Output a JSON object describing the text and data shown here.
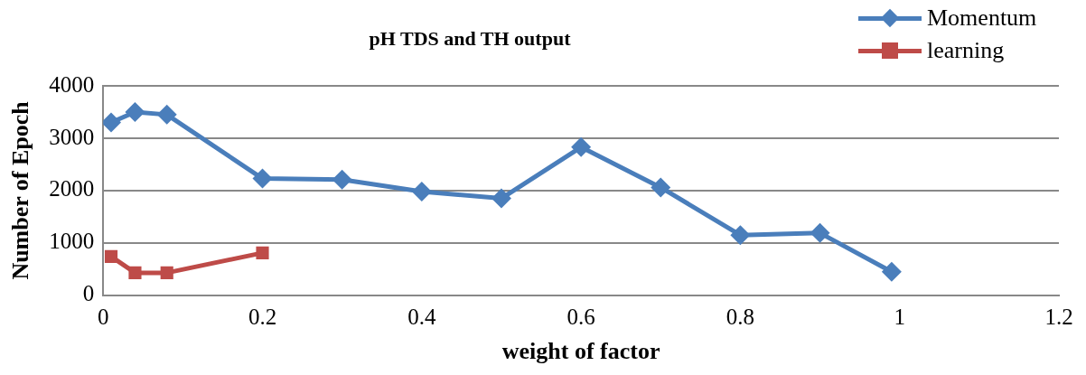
{
  "chart_data": {
    "type": "line",
    "title": "pH TDS and TH output",
    "xlabel": "weight of factor",
    "ylabel": "Number of Epoch",
    "xlim": [
      0,
      1.2
    ],
    "xticks": [
      0,
      0.2,
      0.4,
      0.6,
      0.8,
      1,
      1.2
    ],
    "ylim": [
      0,
      4000
    ],
    "yticks": [
      0,
      1000,
      2000,
      3000,
      4000
    ],
    "grid": "y",
    "legend": "top right",
    "line_style": "solid",
    "series": [
      {
        "name": "Momentum",
        "color": "#4a7ebb",
        "marker": "diamond",
        "x": [
          0.01,
          0.04,
          0.08,
          0.2,
          0.3,
          0.4,
          0.5,
          0.6,
          0.7,
          0.8,
          0.9,
          0.99
        ],
        "values": [
          3300,
          3500,
          3450,
          2230,
          2210,
          1980,
          1850,
          2830,
          2060,
          1150,
          1190,
          450
        ]
      },
      {
        "name": "learning",
        "color": "#be4b48",
        "marker": "square",
        "x": [
          0.01,
          0.04,
          0.08,
          0.2
        ],
        "values": [
          740,
          430,
          430,
          810
        ]
      }
    ]
  }
}
